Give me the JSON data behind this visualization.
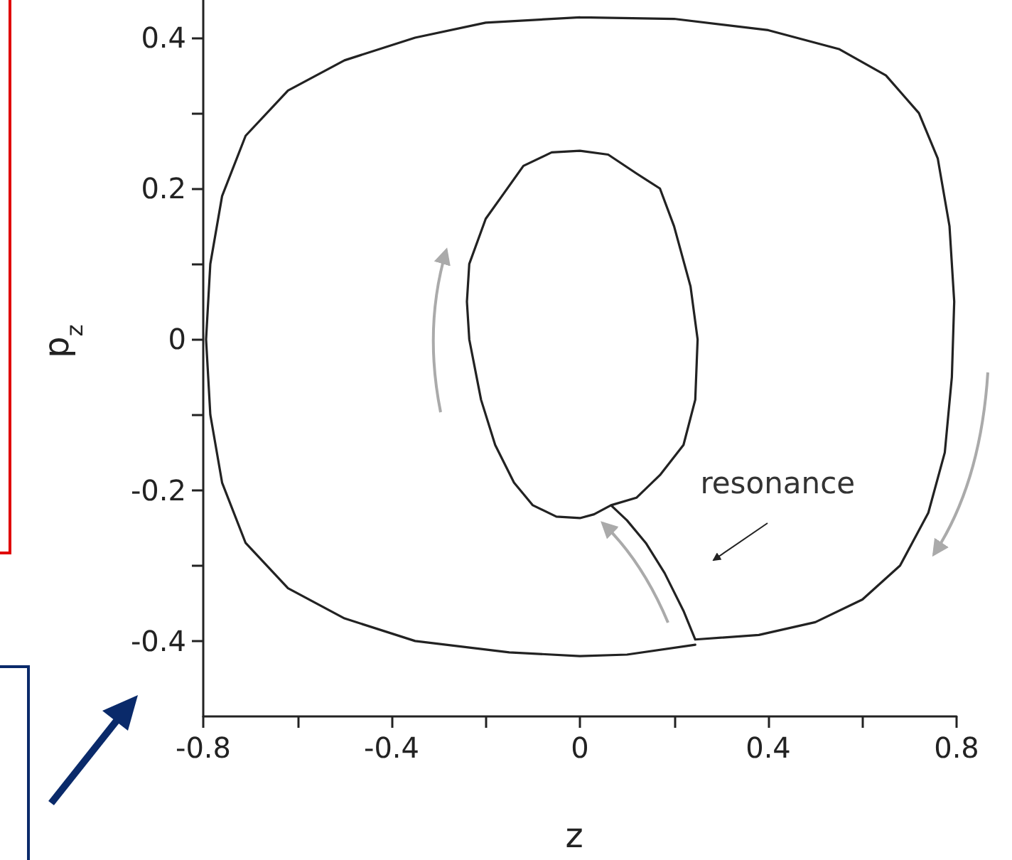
{
  "chart_data": {
    "type": "line",
    "xlabel": "z",
    "ylabel": "p$_{z}$",
    "annotations": [
      "resonance"
    ],
    "x": [
      0,
      0.2,
      0.4,
      0.55,
      0.65,
      0.72,
      0.76,
      0.785,
      0.795,
      0.79,
      0.775,
      0.74,
      0.68,
      0.6,
      0.5,
      0.38,
      0.245,
      0.22,
      0.18,
      0.14,
      0.1,
      0.066,
      0.03,
      0,
      -0.05,
      -0.1,
      -0.14,
      -0.18,
      -0.21,
      -0.235,
      -0.24,
      -0.235,
      -0.2,
      -0.16,
      -0.12,
      -0.06,
      0,
      0.06,
      0.12,
      0.17,
      0.2,
      0.235,
      0.25,
      0.245,
      0.22,
      0.17,
      0.12,
      0.066,
      null,
      0.245,
      0.1,
      0,
      -0.15,
      -0.35,
      -0.5,
      -0.62,
      -0.71,
      -0.76,
      -0.785,
      -0.794,
      -0.785,
      -0.76,
      -0.71,
      -0.62,
      -0.5,
      -0.35,
      -0.2,
      0
    ],
    "series": [
      {
        "color": "#222222",
        "values": [
          0.427,
          0.425,
          0.41,
          0.385,
          0.35,
          0.3,
          0.24,
          0.15,
          0.05,
          -0.05,
          -0.15,
          -0.23,
          -0.3,
          -0.345,
          -0.375,
          -0.392,
          -0.398,
          -0.36,
          -0.31,
          -0.27,
          -0.24,
          -0.22,
          -0.232,
          -0.237,
          -0.235,
          -0.22,
          -0.19,
          -0.14,
          -0.08,
          0,
          0.05,
          0.1,
          0.16,
          0.195,
          0.23,
          0.248,
          0.25,
          0.245,
          0.22,
          0.2,
          0.15,
          0.07,
          0,
          -0.08,
          -0.14,
          -0.18,
          -0.21,
          -0.22,
          null,
          -0.405,
          -0.418,
          -0.42,
          -0.415,
          -0.4,
          -0.37,
          -0.33,
          -0.27,
          -0.19,
          -0.1,
          0,
          0.1,
          0.19,
          0.27,
          0.33,
          0.37,
          0.4,
          0.42,
          0.427
        ]
      }
    ],
    "xlim": [
      -0.8,
      0.8
    ],
    "ylim": [
      -0.5,
      0.45
    ],
    "xticks": [
      -0.8,
      {
        "value": -0.6,
        "label": null
      },
      -0.4,
      {
        "value": -0.2,
        "label": null
      },
      0,
      {
        "value": 0.2,
        "label": null
      },
      0.4,
      {
        "value": 0.6,
        "label": null
      },
      0.8
    ],
    "yticks": [
      -0.4,
      {
        "value": -0.3,
        "label": null
      },
      -0.2,
      {
        "value": -0.1,
        "label": null
      },
      0,
      {
        "value": 0.1,
        "label": null
      },
      0.2,
      {
        "value": 0.3,
        "label": null
      },
      0.4
    ],
    "grid": false,
    "marker": "none",
    "line_style": "solid"
  }
}
